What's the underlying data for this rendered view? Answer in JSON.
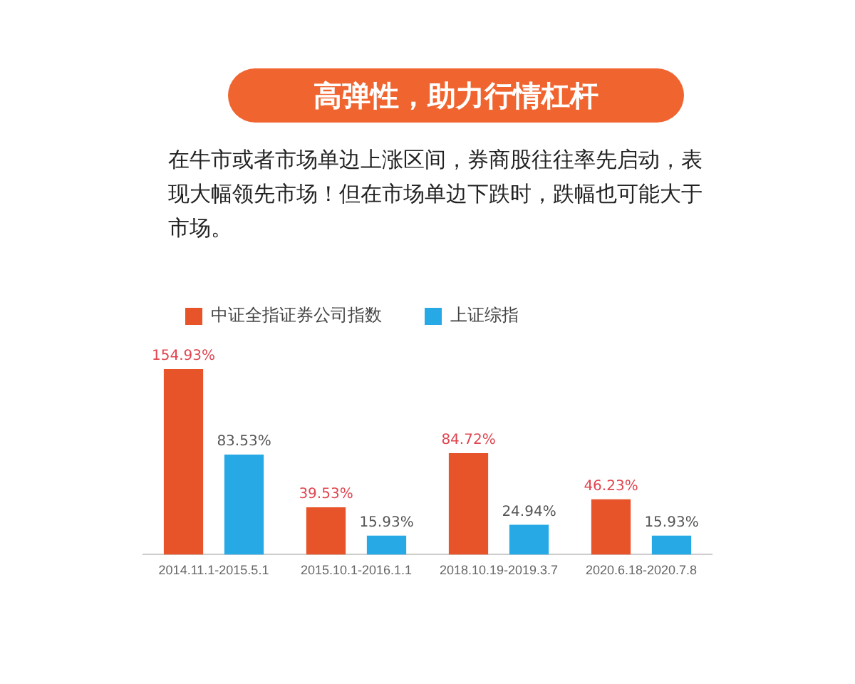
{
  "chart_data": {
    "type": "bar",
    "title": "高弹性，助力行情杠杆",
    "subtitle": "在牛市或者市场单边上涨区间，券商股往往率先启动，表现大幅领先市场！但在市场单边下跌时，跌幅也可能大于市场。",
    "categories": [
      "2014.11.1-2015.5.1",
      "2015.10.1-2016.1.1",
      "2018.10.19-2019.3.7",
      "2020.6.18-2020.7.8"
    ],
    "series": [
      {
        "name": "中证全指证券公司指数",
        "color": "#e8542a",
        "values": [
          154.93,
          39.53,
          84.72,
          46.23
        ],
        "value_labels": [
          "154.93%",
          "39.53%",
          "84.72%",
          "46.23%"
        ]
      },
      {
        "name": "上证综指",
        "color": "#27a9e6",
        "values": [
          83.53,
          15.93,
          24.94,
          15.93
        ],
        "value_labels": [
          "83.53%",
          "15.93%",
          "24.94%",
          "15.93%"
        ]
      }
    ],
    "legend": "top left",
    "grid": false,
    "tick_labels": "x"
  }
}
